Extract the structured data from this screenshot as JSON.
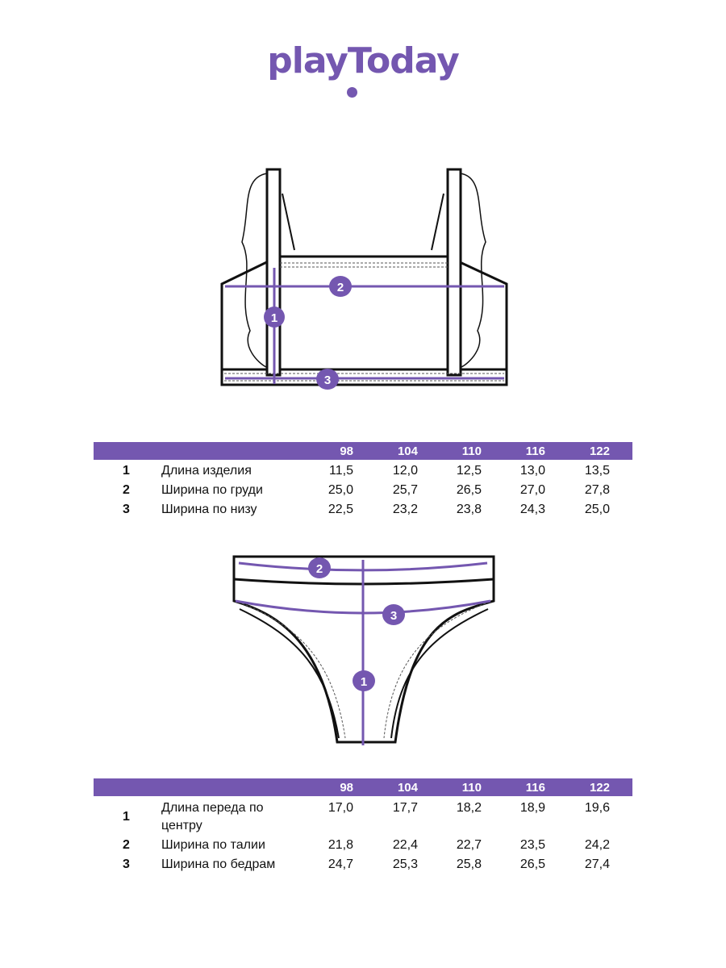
{
  "brand": {
    "logo": "playToday"
  },
  "colors": {
    "accent": "#7457b0"
  },
  "top_table": {
    "sizes": [
      "98",
      "104",
      "110",
      "116",
      "122"
    ],
    "rows": [
      {
        "n": "1",
        "label": "Длина изделия",
        "values": [
          "11,5",
          "12,0",
          "12,5",
          "13,0",
          "13,5"
        ]
      },
      {
        "n": "2",
        "label": "Ширина по груди",
        "values": [
          "25,0",
          "25,7",
          "26,5",
          "27,0",
          "27,8"
        ]
      },
      {
        "n": "3",
        "label": "Ширина по низу",
        "values": [
          "22,5",
          "23,2",
          "23,8",
          "24,3",
          "25,0"
        ]
      }
    ],
    "markers": [
      "1",
      "2",
      "3"
    ]
  },
  "bottom_table": {
    "sizes": [
      "98",
      "104",
      "110",
      "116",
      "122"
    ],
    "rows": [
      {
        "n": "1",
        "label": "Длина переда по центру",
        "values": [
          "17,0",
          "17,7",
          "18,2",
          "18,9",
          "19,6"
        ]
      },
      {
        "n": "2",
        "label": "Ширина по талии",
        "values": [
          "21,8",
          "22,4",
          "22,7",
          "23,5",
          "24,2"
        ]
      },
      {
        "n": "3",
        "label": "Ширина по бедрам",
        "values": [
          "24,7",
          "25,3",
          "25,8",
          "26,5",
          "27,4"
        ]
      }
    ],
    "markers": [
      "1",
      "2",
      "3"
    ]
  }
}
